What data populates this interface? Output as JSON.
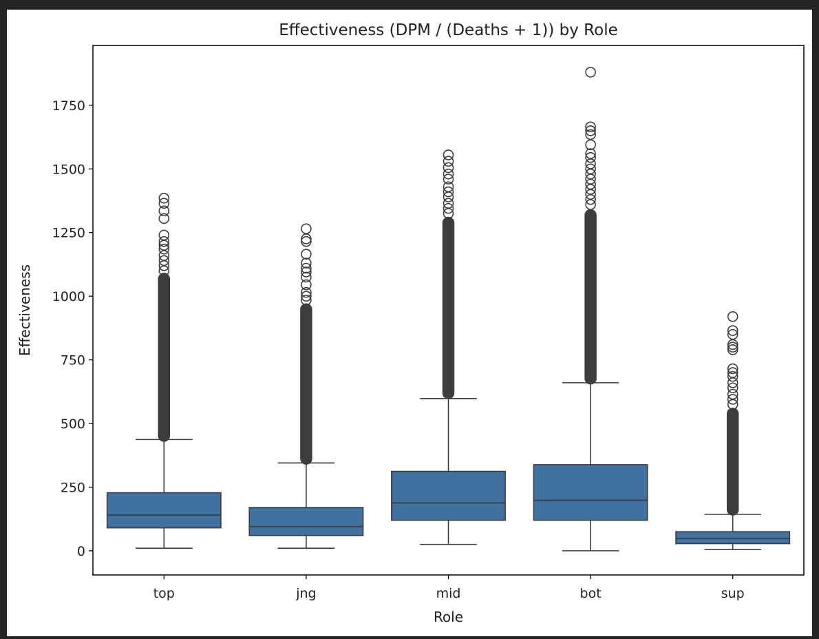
{
  "chart_data": {
    "type": "box",
    "title": "Effectiveness (DPM / (Deaths + 1)) by Role",
    "xlabel": "Role",
    "ylabel": "Effectiveness",
    "ylim": [
      -95,
      1985
    ],
    "yticks": [
      0,
      250,
      500,
      750,
      1000,
      1250,
      1500,
      1750
    ],
    "grid": false,
    "legend": "none",
    "colors": {
      "box_fill": "#3f72a0",
      "line": "#3d3d3d",
      "outlier": "#3d3d3d"
    },
    "categories": [
      "top",
      "jng",
      "mid",
      "bot",
      "sup"
    ],
    "boxes": [
      {
        "category": "top",
        "whisker_low": 10,
        "q1": 90,
        "median": 140,
        "q3": 228,
        "whisker_high": 437,
        "outlier_band": [
          430,
          1090
        ],
        "outliers": [
          1100,
          1120,
          1140,
          1160,
          1185,
          1200,
          1215,
          1240,
          1305,
          1335,
          1365,
          1385
        ]
      },
      {
        "category": "jng",
        "whisker_low": 10,
        "q1": 60,
        "median": 95,
        "q3": 170,
        "whisker_high": 345,
        "outlier_band": [
          340,
          970
        ],
        "outliers": [
          985,
          1000,
          1015,
          1045,
          1075,
          1095,
          1110,
          1130,
          1165,
          1215,
          1225,
          1265
        ]
      },
      {
        "category": "mid",
        "whisker_low": 25,
        "q1": 120,
        "median": 188,
        "q3": 312,
        "whisker_high": 598,
        "outlier_band": [
          598,
          1310
        ],
        "outliers": [
          1325,
          1345,
          1365,
          1390,
          1410,
          1430,
          1460,
          1480,
          1505,
          1530,
          1555
        ]
      },
      {
        "category": "bot",
        "whisker_low": 0,
        "q1": 120,
        "median": 198,
        "q3": 338,
        "whisker_high": 660,
        "outlier_band": [
          655,
          1340
        ],
        "outliers": [
          1360,
          1380,
          1400,
          1420,
          1440,
          1460,
          1480,
          1500,
          1520,
          1545,
          1560,
          1595,
          1635,
          1650,
          1665,
          1880
        ]
      },
      {
        "category": "sup",
        "whisker_low": 5,
        "q1": 28,
        "median": 48,
        "q3": 75,
        "whisker_high": 143,
        "outlier_band": [
          140,
          560
        ],
        "outliers": [
          575,
          595,
          615,
          640,
          660,
          685,
          700,
          715,
          790,
          800,
          810,
          850,
          865,
          920
        ]
      }
    ]
  }
}
